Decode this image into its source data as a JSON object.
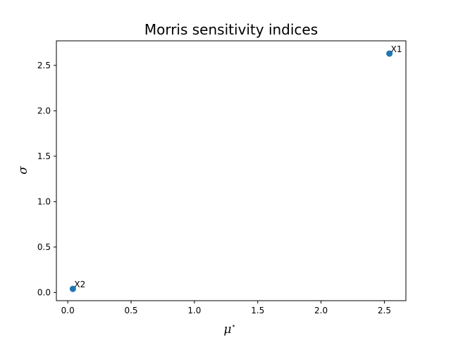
{
  "chart_data": {
    "type": "scatter",
    "title": "Morris sensitivity indices",
    "xlabel": "μ",
    "xlabel_superscript": "⋆",
    "ylabel": "σ",
    "xlim": [
      -0.09,
      2.67
    ],
    "ylim": [
      -0.09,
      2.77
    ],
    "xticks": [
      0.0,
      0.5,
      1.0,
      1.5,
      2.0,
      2.5
    ],
    "xtick_labels": [
      "0.0",
      "0.5",
      "1.0",
      "1.5",
      "2.0",
      "2.5"
    ],
    "yticks": [
      0.0,
      0.5,
      1.0,
      1.5,
      2.0,
      2.5
    ],
    "ytick_labels": [
      "0.0",
      "0.5",
      "1.0",
      "1.5",
      "2.0",
      "2.5"
    ],
    "grid": false,
    "points": [
      {
        "label": "X1",
        "x": 2.54,
        "y": 2.63
      },
      {
        "label": "X2",
        "x": 0.04,
        "y": 0.04
      }
    ],
    "marker_color": "#1f77b4"
  }
}
